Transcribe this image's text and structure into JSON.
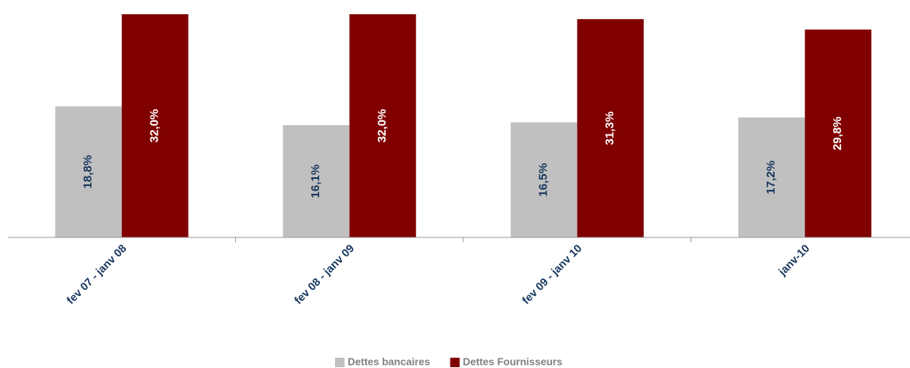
{
  "chart_data": {
    "type": "bar",
    "categories": [
      "fev 07 - janv 08",
      "fev 08 - janv 09",
      "fev 09 - janv 10",
      "janv-10"
    ],
    "series": [
      {
        "name": "Dettes bancaires",
        "color": "#c0c0c0",
        "label_color": "#17375e",
        "values": [
          18.8,
          16.1,
          16.5,
          17.2
        ],
        "value_labels": [
          "18,8%",
          "16,1%",
          "16,5%",
          "17,2%"
        ]
      },
      {
        "name": "Dettes Fournisseurs",
        "color": "#800000",
        "label_color": "#ffffff",
        "values": [
          32.0,
          32.0,
          31.3,
          29.8
        ],
        "value_labels": [
          "32,0%",
          "32,0%",
          "31,3%",
          "29,8%"
        ]
      }
    ],
    "legend": "bottom"
  }
}
